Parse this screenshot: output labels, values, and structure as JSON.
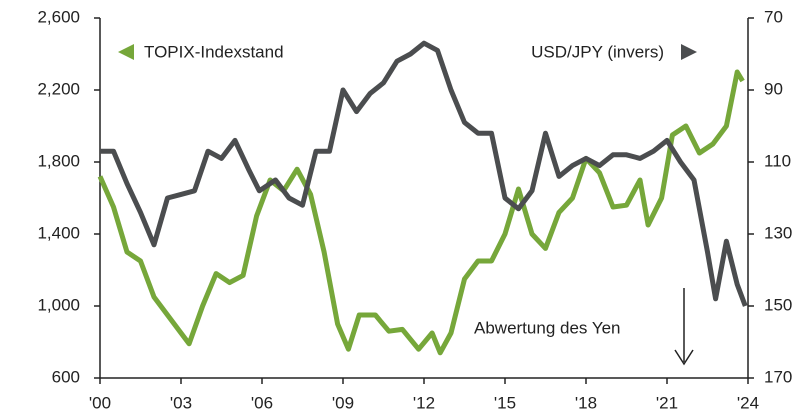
{
  "chart_data": {
    "type": "line",
    "annotation": "Abwertung des Yen",
    "xlim": [
      2000,
      2024
    ],
    "xticks": [
      {
        "value": 2000,
        "label": "'00"
      },
      {
        "value": 2003,
        "label": "'03"
      },
      {
        "value": 2006,
        "label": "'06"
      },
      {
        "value": 2009,
        "label": "'09"
      },
      {
        "value": 2012,
        "label": "'12"
      },
      {
        "value": 2015,
        "label": "'15"
      },
      {
        "value": 2018,
        "label": "'18"
      },
      {
        "value": 2021,
        "label": "'21"
      },
      {
        "value": 2024,
        "label": "'24"
      }
    ],
    "ylim": [
      600,
      2600
    ],
    "yticks": [
      {
        "value": 600,
        "label": "600"
      },
      {
        "value": 1000,
        "label": "1,000"
      },
      {
        "value": 1400,
        "label": "1,400"
      },
      {
        "value": 1800,
        "label": "1,800"
      },
      {
        "value": 2200,
        "label": "2,200"
      },
      {
        "value": 2600,
        "label": "2,600"
      }
    ],
    "y2lim": [
      170,
      70
    ],
    "y2ticks": [
      70,
      90,
      110,
      130,
      150,
      170
    ],
    "series": [
      {
        "name": "TOPIX-Indexstand",
        "color": "#76a73a",
        "axis": "y",
        "x": [
          2000.0,
          2000.5,
          2001.0,
          2001.5,
          2002.0,
          2002.5,
          2003.0,
          2003.3,
          2003.8,
          2004.3,
          2004.8,
          2005.3,
          2005.8,
          2006.3,
          2006.8,
          2007.3,
          2007.8,
          2008.3,
          2008.8,
          2009.2,
          2009.6,
          2010.2,
          2010.7,
          2011.2,
          2011.8,
          2012.3,
          2012.6,
          2013.0,
          2013.5,
          2014.0,
          2014.5,
          2015.0,
          2015.5,
          2016.0,
          2016.5,
          2017.0,
          2017.5,
          2018.0,
          2018.5,
          2019.0,
          2019.5,
          2020.0,
          2020.3,
          2020.8,
          2021.2,
          2021.7,
          2022.2,
          2022.7,
          2023.2,
          2023.6,
          2023.8
        ],
        "values": [
          1720,
          1550,
          1300,
          1250,
          1050,
          950,
          850,
          790,
          1000,
          1180,
          1130,
          1170,
          1500,
          1700,
          1640,
          1760,
          1620,
          1300,
          900,
          760,
          950,
          950,
          860,
          870,
          760,
          850,
          740,
          850,
          1150,
          1250,
          1250,
          1400,
          1650,
          1400,
          1320,
          1520,
          1600,
          1820,
          1740,
          1550,
          1560,
          1700,
          1450,
          1600,
          1950,
          2000,
          1850,
          1900,
          2000,
          2300,
          2250
        ]
      },
      {
        "name": "USD/JPY (invers)",
        "color": "#4b4d4f",
        "axis": "y2",
        "x": [
          2000.0,
          2000.5,
          2001.0,
          2001.5,
          2002.0,
          2002.5,
          2003.0,
          2003.5,
          2004.0,
          2004.5,
          2005.0,
          2005.5,
          2005.9,
          2006.5,
          2007.0,
          2007.5,
          2008.0,
          2008.5,
          2009.0,
          2009.5,
          2010.0,
          2010.5,
          2011.0,
          2011.5,
          2012.0,
          2012.5,
          2013.0,
          2013.5,
          2014.0,
          2014.5,
          2015.0,
          2015.5,
          2016.0,
          2016.5,
          2017.0,
          2017.5,
          2018.0,
          2018.5,
          2019.0,
          2019.5,
          2020.0,
          2020.5,
          2021.0,
          2021.5,
          2022.0,
          2022.5,
          2022.8,
          2023.2,
          2023.6,
          2023.9
        ],
        "values": [
          107,
          107,
          116,
          124,
          133,
          120,
          119,
          118,
          107,
          109,
          104,
          112,
          118,
          115,
          120,
          122,
          107,
          107,
          90,
          96,
          91,
          88,
          82,
          80,
          77,
          79,
          90,
          99,
          102,
          102,
          120,
          123,
          118,
          102,
          114,
          111,
          109,
          111,
          108,
          108,
          109,
          107,
          104,
          110,
          115,
          135,
          148,
          132,
          144,
          150
        ]
      }
    ]
  }
}
